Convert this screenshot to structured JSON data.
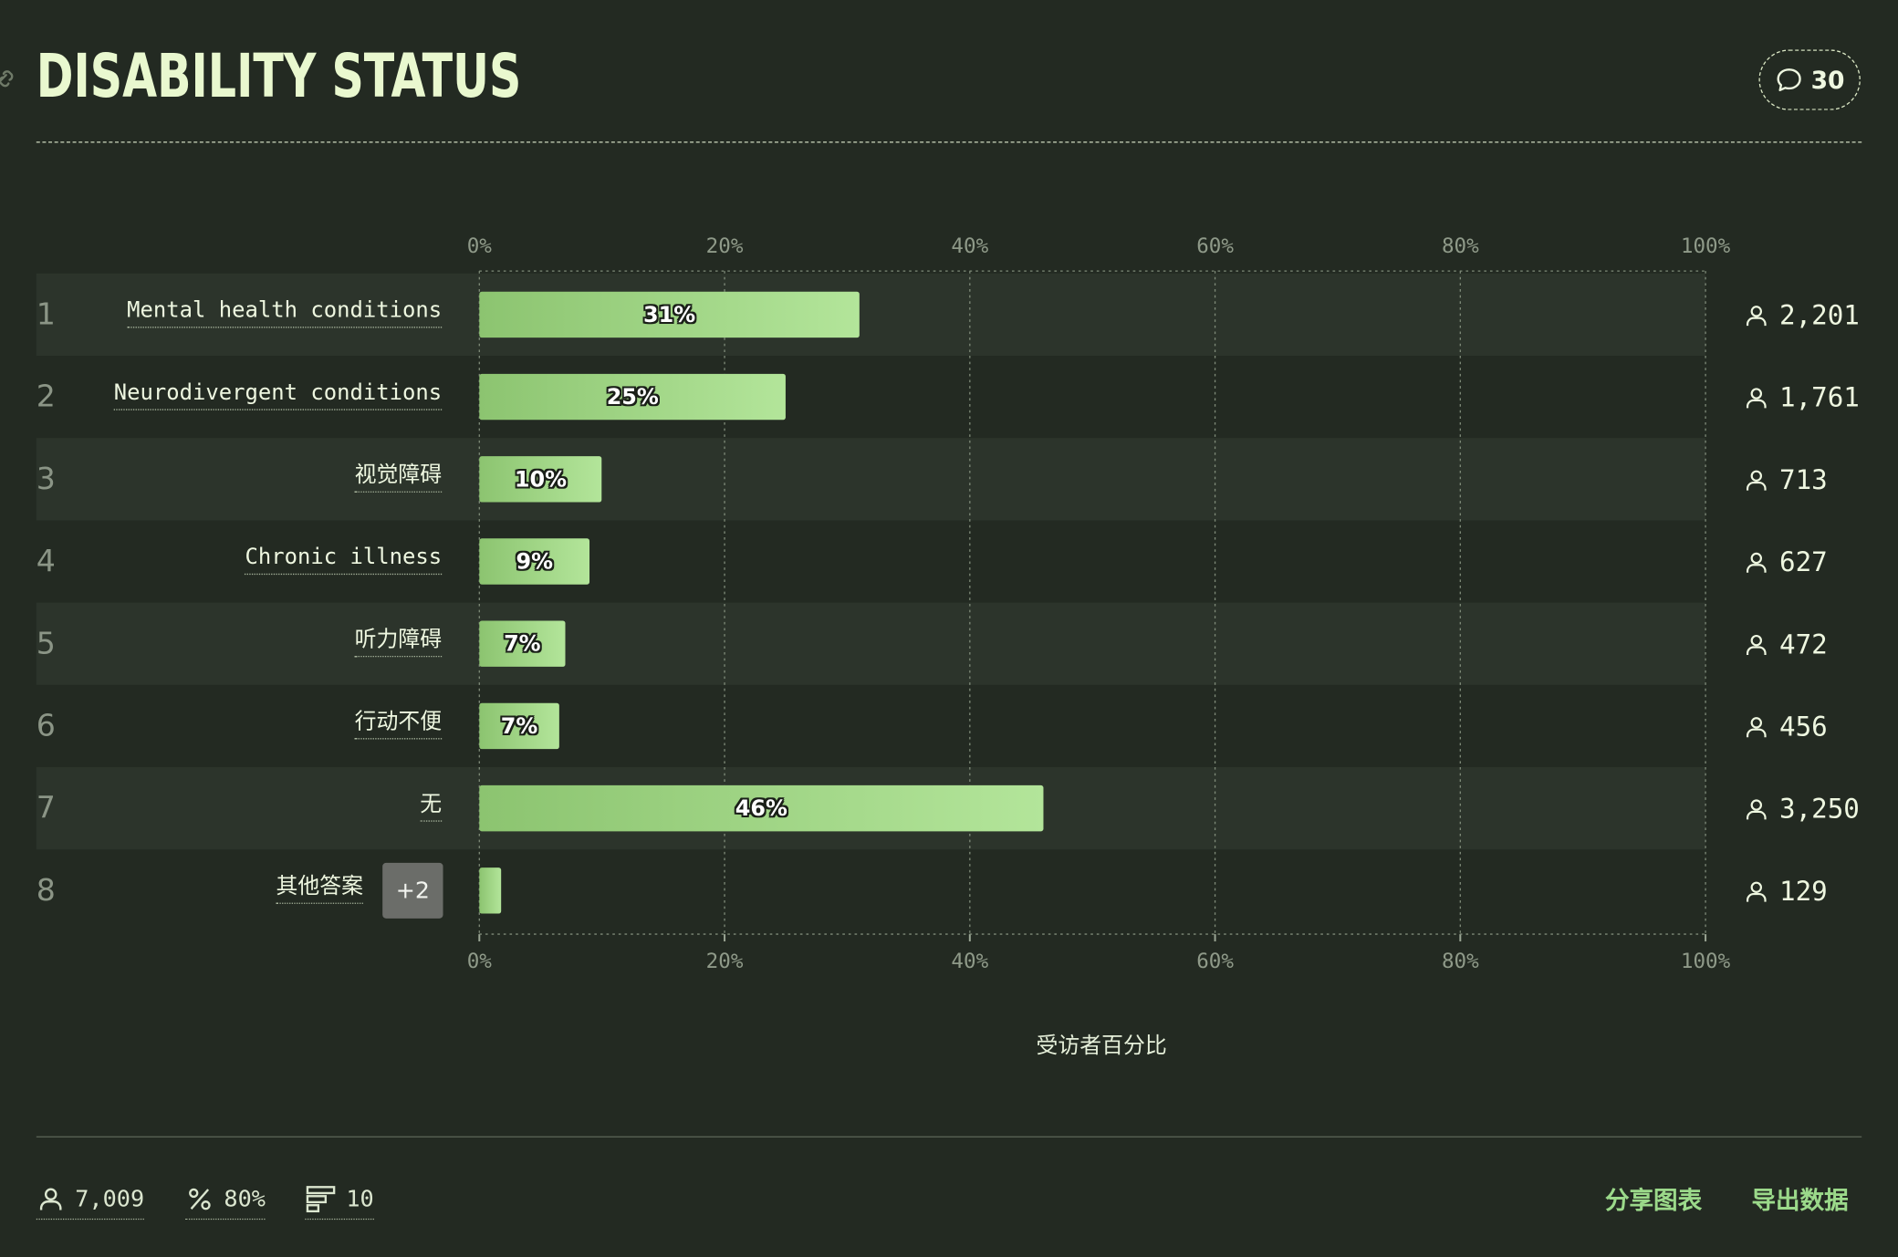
{
  "header": {
    "title": "DISABILITY STATUS",
    "comment_count": "30"
  },
  "chart_data": {
    "type": "bar",
    "orientation": "horizontal",
    "xlabel": "受访者百分比",
    "xlim": [
      0,
      100
    ],
    "ticks": [
      "0%",
      "20%",
      "40%",
      "60%",
      "80%",
      "100%"
    ],
    "grid": true,
    "rows": [
      {
        "rank": "1",
        "label": "Mental health conditions",
        "value": 31,
        "value_label": "31%",
        "count": "2,201"
      },
      {
        "rank": "2",
        "label": "Neurodivergent conditions",
        "value": 25,
        "value_label": "25%",
        "count": "1,761"
      },
      {
        "rank": "3",
        "label": "视觉障碍",
        "value": 10,
        "value_label": "10%",
        "count": "713"
      },
      {
        "rank": "4",
        "label": "Chronic illness",
        "value": 9,
        "value_label": "9%",
        "count": "627"
      },
      {
        "rank": "5",
        "label": "听力障碍",
        "value": 7,
        "value_label": "7%",
        "count": "472"
      },
      {
        "rank": "6",
        "label": "行动不便",
        "value": 6.5,
        "value_label": "7%",
        "count": "456"
      },
      {
        "rank": "7",
        "label": "无",
        "value": 46,
        "value_label": "46%",
        "count": "3,250"
      },
      {
        "rank": "8",
        "label": "其他答案",
        "badge": "+2",
        "value": 1.8,
        "value_label": "",
        "count": "129"
      }
    ],
    "colors": {
      "bar_start": "#8cc470",
      "bar_end": "#b3e59a",
      "band": "#2c342b",
      "background": "#232a22"
    }
  },
  "footer": {
    "respondents": "7,009",
    "percent": "80%",
    "options": "10",
    "share_label": "分享图表",
    "export_label": "导出数据"
  }
}
